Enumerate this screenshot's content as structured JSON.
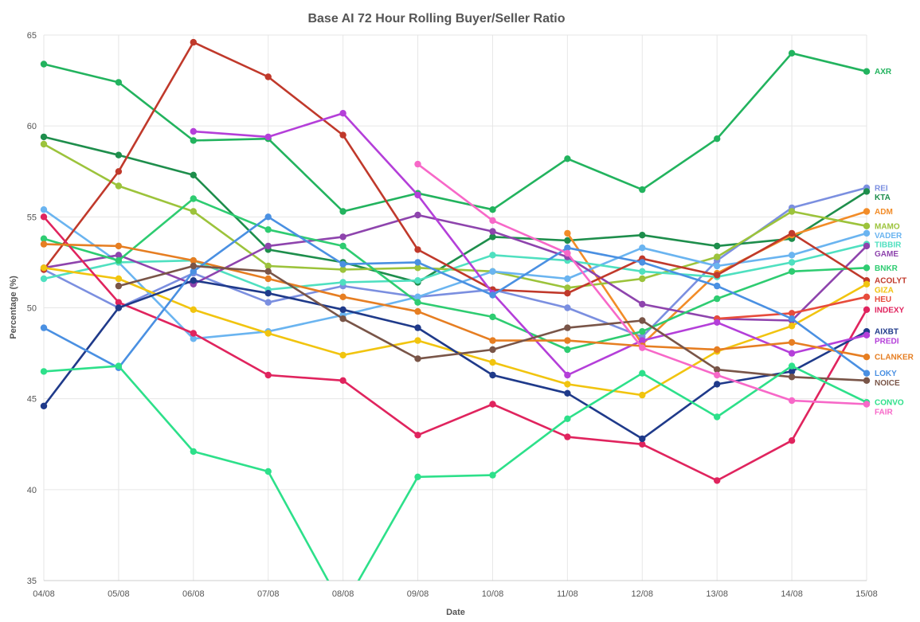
{
  "chart_data": {
    "type": "line",
    "title": "Base AI 72 Hour Rolling Buyer/Seller Ratio",
    "xlabel": "Date",
    "ylabel": "Percentage (%)",
    "ylim": [
      35,
      65
    ],
    "yticks": [
      35,
      40,
      45,
      50,
      55,
      60,
      65
    ],
    "categories": [
      "04/08",
      "05/08",
      "06/08",
      "07/08",
      "08/08",
      "09/08",
      "10/08",
      "11/08",
      "12/08",
      "13/08",
      "14/08",
      "15/08"
    ],
    "grid": true,
    "legend": "right-end-labels",
    "series": [
      {
        "name": "AXR",
        "color": "#22b35e",
        "values": [
          63.4,
          62.4,
          59.2,
          59.3,
          55.3,
          56.3,
          55.4,
          58.2,
          56.5,
          59.3,
          64.0,
          63.0
        ]
      },
      {
        "name": "REI",
        "color": "#7b8fe0",
        "values": [
          52.1,
          50.0,
          51.9,
          50.3,
          51.2,
          50.6,
          51.0,
          50.0,
          48.4,
          52.6,
          55.5,
          56.6
        ]
      },
      {
        "name": "KTA",
        "color": "#1e8e4c",
        "values": [
          59.4,
          58.4,
          57.3,
          53.2,
          52.5,
          51.4,
          53.9,
          53.7,
          54.0,
          53.4,
          53.8,
          56.4
        ]
      },
      {
        "name": "ADM",
        "color": "#f28c28",
        "values": [
          null,
          null,
          null,
          null,
          null,
          null,
          null,
          54.1,
          48.0,
          51.9,
          54.0,
          55.3
        ]
      },
      {
        "name": "MAMO",
        "color": "#9cc33b",
        "values": [
          59.0,
          56.7,
          55.3,
          52.3,
          52.1,
          52.2,
          52.0,
          51.1,
          51.6,
          52.8,
          55.3,
          54.5
        ]
      },
      {
        "name": "VADER",
        "color": "#6ab4f0",
        "values": [
          55.4,
          52.5,
          48.3,
          48.7,
          49.6,
          50.6,
          52.0,
          51.6,
          53.3,
          52.3,
          52.9,
          54.1
        ]
      },
      {
        "name": "TIBBIR",
        "color": "#4fe0c0",
        "values": [
          51.6,
          52.5,
          52.6,
          51.0,
          51.4,
          51.5,
          52.9,
          52.6,
          52.0,
          51.7,
          52.5,
          53.5
        ]
      },
      {
        "name": "GAME",
        "color": "#8e44ad",
        "values": [
          52.2,
          52.9,
          51.3,
          53.4,
          53.9,
          55.1,
          54.2,
          52.8,
          50.2,
          49.4,
          49.3,
          53.4
        ]
      },
      {
        "name": "BNKR",
        "color": "#2ecc71",
        "values": [
          53.8,
          52.6,
          56.0,
          54.3,
          53.4,
          50.3,
          49.5,
          47.7,
          48.7,
          50.5,
          52.0,
          52.2
        ]
      },
      {
        "name": "ACOLYT",
        "color": "#c0392b",
        "values": [
          52.1,
          57.5,
          64.6,
          62.7,
          59.5,
          53.2,
          51.0,
          50.8,
          52.7,
          51.8,
          54.1,
          51.5
        ]
      },
      {
        "name": "GIZA",
        "color": "#f1c40f",
        "values": [
          52.2,
          51.6,
          49.9,
          48.6,
          47.4,
          48.2,
          47.0,
          45.8,
          45.2,
          47.6,
          49.0,
          51.3
        ]
      },
      {
        "name": "HEU",
        "color": "#e74c3c",
        "values": [
          null,
          null,
          null,
          null,
          null,
          null,
          null,
          null,
          null,
          49.4,
          49.7,
          50.6
        ]
      },
      {
        "name": "INDEXY",
        "color": "#e0245e",
        "values": [
          55.0,
          50.3,
          48.6,
          46.3,
          46.0,
          43.0,
          44.7,
          42.9,
          42.5,
          40.5,
          42.7,
          49.9
        ]
      },
      {
        "name": "AIXBT",
        "color": "#1f3a8a",
        "values": [
          44.6,
          50.0,
          51.5,
          50.8,
          49.9,
          48.9,
          46.3,
          45.3,
          42.8,
          45.8,
          46.5,
          48.7
        ]
      },
      {
        "name": "PREDI",
        "color": "#b43fd9",
        "values": [
          null,
          null,
          59.7,
          59.4,
          60.7,
          56.2,
          50.8,
          46.3,
          48.2,
          49.2,
          47.5,
          48.5
        ]
      },
      {
        "name": "CLANKER",
        "color": "#e67e22",
        "values": [
          53.5,
          53.4,
          52.6,
          51.6,
          50.6,
          49.8,
          48.2,
          48.2,
          47.9,
          47.7,
          48.1,
          47.3
        ]
      },
      {
        "name": "LOKY",
        "color": "#4a90e2",
        "values": [
          48.9,
          46.7,
          52.0,
          55.0,
          52.4,
          52.5,
          50.7,
          53.3,
          52.5,
          51.2,
          49.4,
          46.4
        ]
      },
      {
        "name": "NOICE",
        "color": "#795548",
        "values": [
          null,
          51.2,
          52.3,
          52.0,
          49.4,
          47.2,
          47.7,
          48.9,
          49.3,
          46.6,
          46.2,
          46.0
        ]
      },
      {
        "name": "CONVO",
        "color": "#2de08a",
        "values": [
          46.5,
          46.8,
          42.1,
          41.0,
          33.5,
          40.7,
          40.8,
          43.9,
          46.4,
          44.0,
          46.8,
          44.8
        ]
      },
      {
        "name": "FAIR",
        "color": "#f768c8",
        "values": [
          null,
          null,
          null,
          null,
          null,
          57.9,
          54.8,
          53.0,
          47.8,
          46.3,
          44.9,
          44.7
        ]
      }
    ]
  }
}
